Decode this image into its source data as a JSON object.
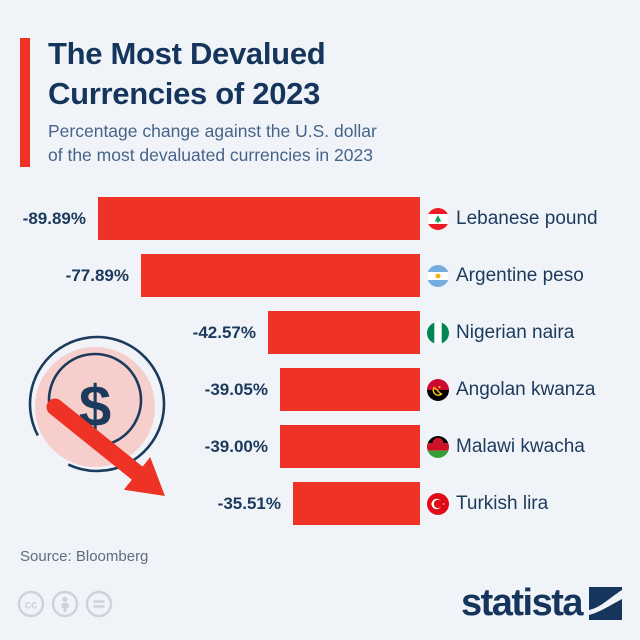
{
  "header": {
    "title_line1": "The Most Devalued",
    "title_line2": "Currencies of 2023",
    "subtitle_line1": "Percentage change against the U.S. dollar",
    "subtitle_line2": "of the most devaluated currencies in 2023"
  },
  "chart_data": {
    "type": "bar",
    "orientation": "horizontal",
    "title": "The Most Devalued Currencies of 2023",
    "subtitle": "Percentage change against the U.S. dollar of the most devaluated currencies in 2023",
    "unit": "%",
    "categories": [
      "Lebanese pound",
      "Argentine peso",
      "Nigerian naira",
      "Angolan kwanza",
      "Malawi kwacha",
      "Turkish lira"
    ],
    "values": [
      -89.89,
      -77.89,
      -42.57,
      -39.05,
      -39.0,
      -35.51
    ],
    "value_labels": [
      "-89.89%",
      "-77.89%",
      "-42.57%",
      "-39.05%",
      "-39.00%",
      "-35.51%"
    ],
    "flags": [
      "lebanon",
      "argentina",
      "nigeria",
      "angola",
      "malawi",
      "turkey"
    ],
    "bar_color": "#ee3326",
    "axis_max_abs": 89.89,
    "grid": false,
    "legend": false
  },
  "decoration": {
    "coin_icon": "dollar-coin-with-downward-red-arrow",
    "coin_fill": "#f6cfcd",
    "outline_color": "#1b3a5c",
    "arrow_color": "#ee3326"
  },
  "footer": {
    "source": "Source: Bloomberg",
    "brand": "statista",
    "license_icons": [
      "cc-icon",
      "attribution-icon",
      "equals-icon"
    ]
  },
  "colors": {
    "background": "#f0f4f8",
    "accent_red": "#ee3326",
    "title_navy": "#16355c",
    "subtitle_blue": "#46648a",
    "label_navy": "#1b3a5c",
    "source_gray": "#5c6e80",
    "license_gray": "#ccd3dc"
  }
}
